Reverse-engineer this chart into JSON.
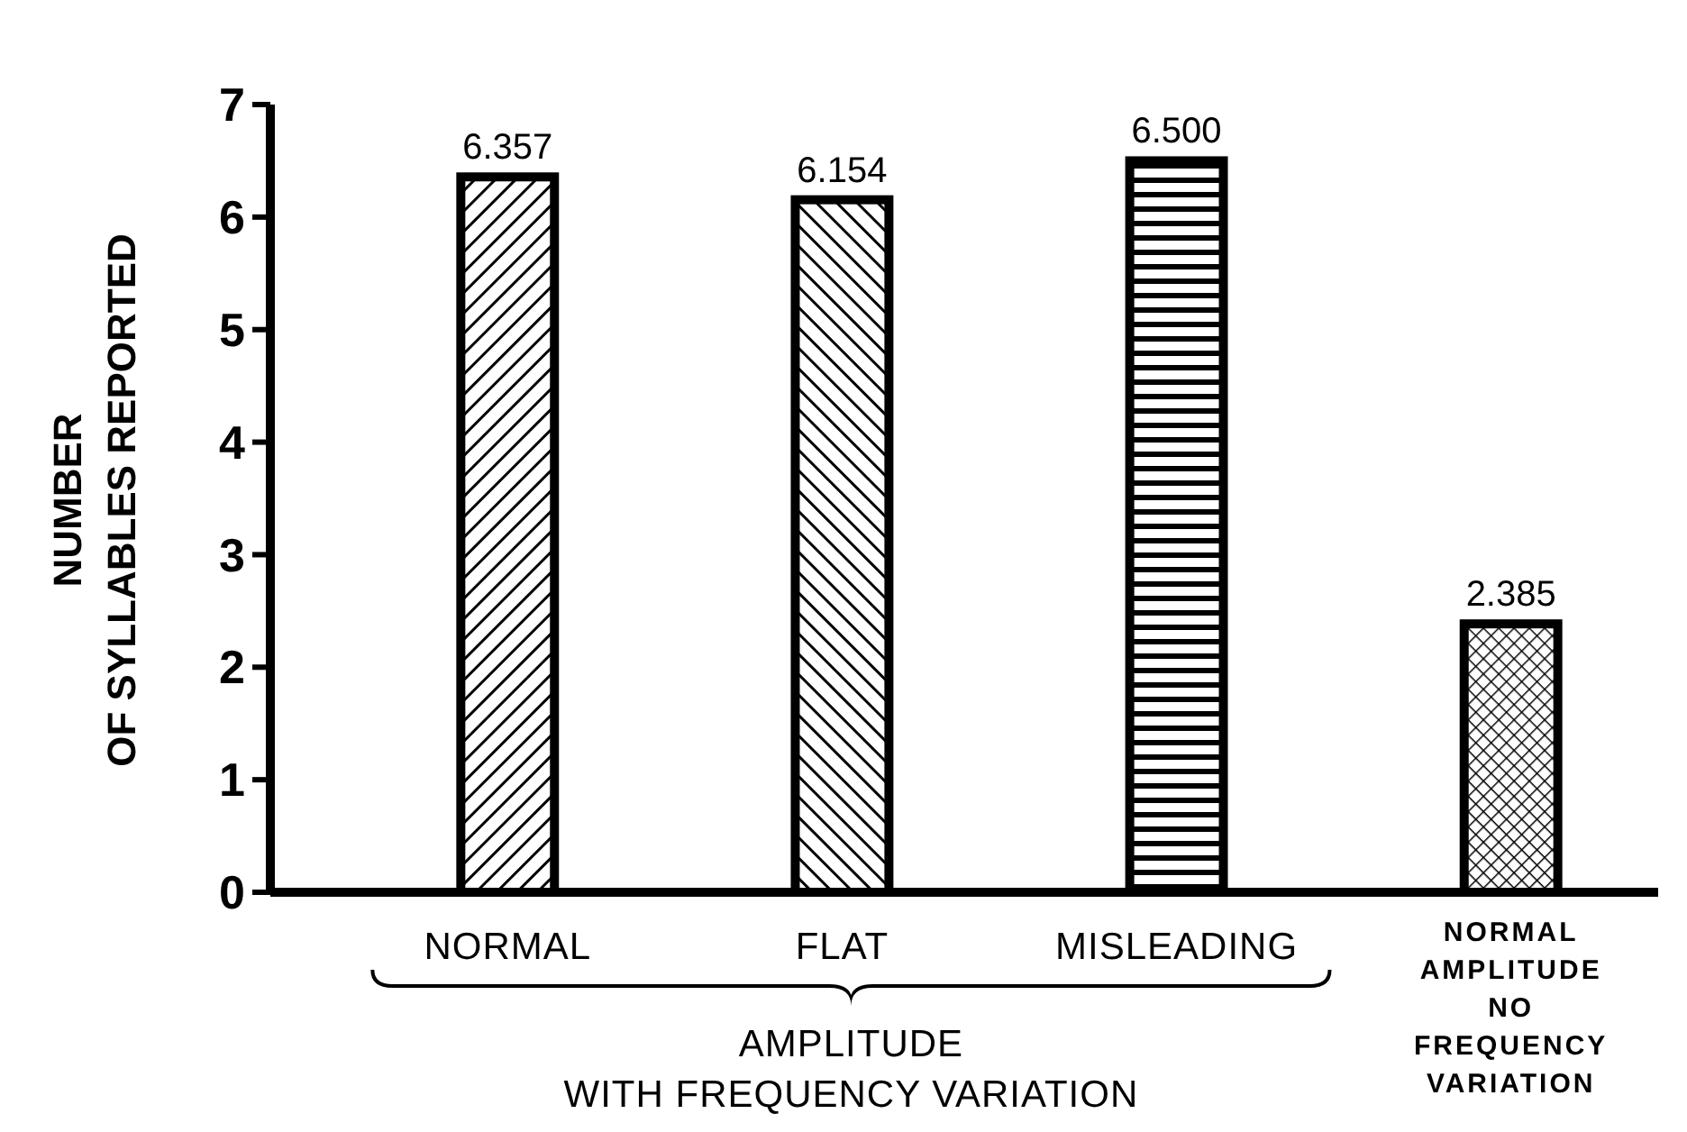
{
  "chart_data": {
    "type": "bar",
    "categories": [
      "NORMAL",
      "FLAT",
      "MISLEADING",
      "NORMAL\nAMPLITUDE\nNO\nFREQUENCY\nVARIATION"
    ],
    "values": [
      6.357,
      6.154,
      6.5,
      2.385
    ],
    "color": "#000000",
    "ylabel": "NUMBER\nOF SYLLABLES REPORTED",
    "ylim": [
      0,
      7
    ],
    "yticks": [
      0,
      1,
      2,
      3,
      4,
      5,
      6,
      7
    ],
    "value_labels": [
      "6.357",
      "6.154",
      "6.500",
      "2.385"
    ],
    "annotations": [
      "AMPLITUDE\nWITH FREQUENCY VARIATION"
    ]
  }
}
